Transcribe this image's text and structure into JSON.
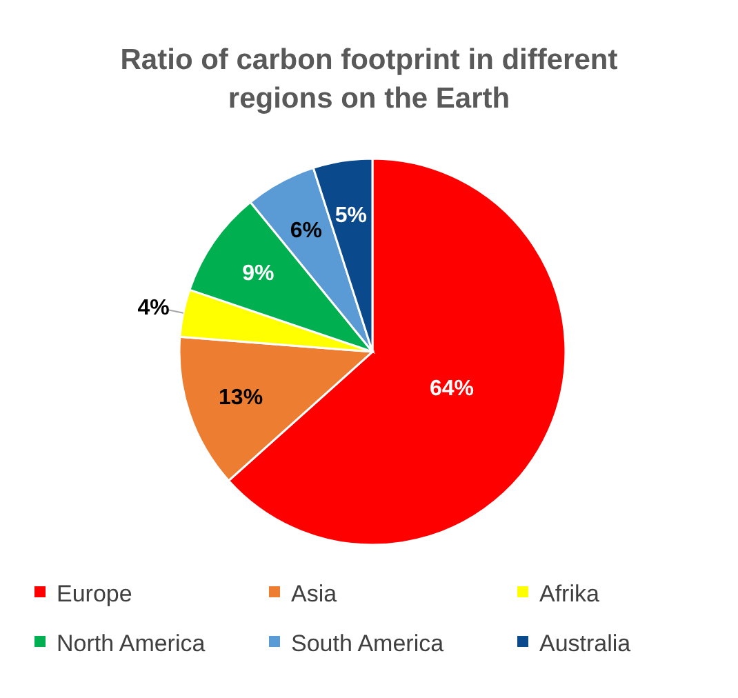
{
  "chart_data": {
    "type": "pie",
    "title": "Ratio of carbon footprint in different regions on the Earth",
    "categories": [
      "Europe",
      "Asia",
      "Afrika",
      "North America",
      "South America",
      "Australia"
    ],
    "values": [
      64,
      13,
      4,
      9,
      6,
      5
    ],
    "colors": [
      "#ff0000",
      "#ed7d31",
      "#ffff00",
      "#00b050",
      "#5b9bd5",
      "#0a4a8c"
    ],
    "value_labels": [
      "64%",
      "13%",
      "4%",
      "9%",
      "6%",
      "5%"
    ],
    "legend": "bottom"
  }
}
